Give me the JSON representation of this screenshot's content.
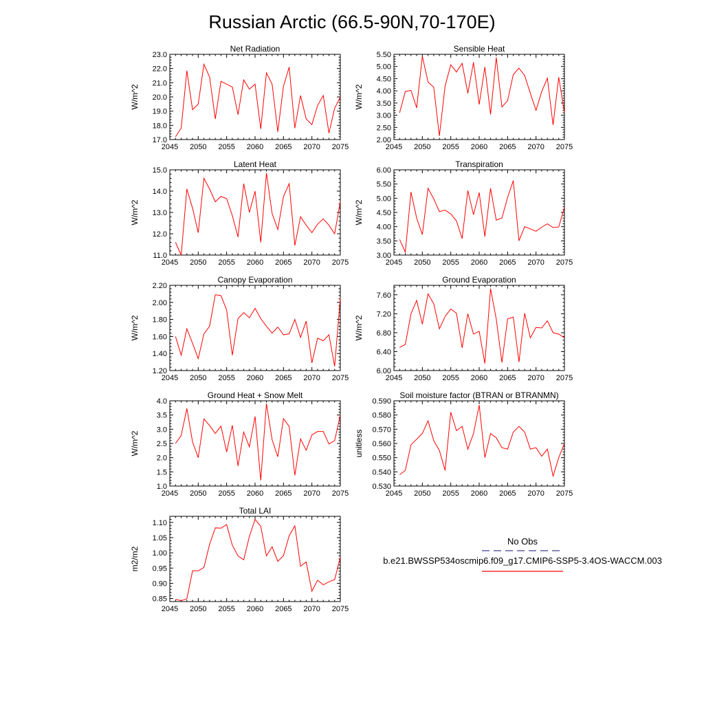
{
  "title": "Russian Arctic (66.5-90N,70-170E)",
  "legend": {
    "obs_label": "No Obs",
    "obs_color": "#3d3d8f",
    "model_label": "b.e21.BWSSP534oscmip6.f09_g17.CMIP6-SSP5-3.4OS-WACCM.003",
    "model_color": "#ff0000"
  },
  "chart_data": [
    {
      "type": "line",
      "title": "Net Radiation",
      "ylabel": "W/m^2",
      "xlim": [
        2045,
        2075
      ],
      "ylim": [
        17.0,
        23.0
      ],
      "xticks": [
        2045,
        2050,
        2055,
        2060,
        2065,
        2070,
        2075
      ],
      "yticks": [
        "17.0",
        "18.0",
        "19.0",
        "20.0",
        "21.0",
        "22.0",
        "23.0"
      ],
      "x": [
        2046,
        2047,
        2048,
        2049,
        2050,
        2051,
        2052,
        2053,
        2054,
        2055,
        2056,
        2057,
        2058,
        2059,
        2060,
        2061,
        2062,
        2063,
        2064,
        2065,
        2066,
        2067,
        2068,
        2069,
        2070,
        2071,
        2072,
        2073,
        2074,
        2075
      ],
      "series": [
        {
          "color": "#ff0000",
          "values": [
            17.2,
            17.8,
            21.85,
            19.1,
            19.5,
            22.3,
            21.4,
            18.45,
            21.1,
            20.9,
            20.7,
            18.75,
            21.2,
            20.55,
            20.9,
            17.75,
            21.7,
            20.9,
            17.55,
            20.75,
            22.1,
            17.8,
            20.1,
            18.45,
            18.05,
            19.4,
            20.1,
            17.45,
            19.2,
            20.0
          ]
        }
      ]
    },
    {
      "type": "line",
      "title": "Sensible Heat",
      "ylabel": "W/m^2",
      "xlim": [
        2045,
        2075
      ],
      "ylim": [
        2.0,
        5.5
      ],
      "xticks": [
        2045,
        2050,
        2055,
        2060,
        2065,
        2070,
        2075
      ],
      "yticks": [
        "2.00",
        "2.50",
        "3.00",
        "3.50",
        "4.00",
        "4.50",
        "5.00",
        "5.50"
      ],
      "x": [
        2046,
        2047,
        2048,
        2049,
        2050,
        2051,
        2052,
        2053,
        2054,
        2055,
        2056,
        2057,
        2058,
        2059,
        2060,
        2061,
        2062,
        2063,
        2064,
        2065,
        2066,
        2067,
        2068,
        2069,
        2070,
        2071,
        2072,
        2073,
        2074,
        2075
      ],
      "series": [
        {
          "color": "#ff0000",
          "values": [
            3.1,
            3.97,
            4.02,
            3.3,
            5.42,
            4.36,
            4.15,
            2.15,
            4.2,
            5.07,
            4.77,
            5.13,
            3.9,
            5.17,
            3.44,
            4.98,
            3.03,
            5.37,
            3.34,
            3.6,
            4.67,
            4.93,
            4.63,
            3.9,
            3.2,
            3.97,
            4.52,
            2.6,
            4.56,
            3.1
          ]
        }
      ]
    },
    {
      "type": "line",
      "title": "Latent Heat",
      "ylabel": "W/m^2",
      "xlim": [
        2045,
        2075
      ],
      "ylim": [
        11.0,
        15.0
      ],
      "xticks": [
        2045,
        2050,
        2055,
        2060,
        2065,
        2070,
        2075
      ],
      "yticks": [
        "11.0",
        "12.0",
        "13.0",
        "14.0",
        "15.0"
      ],
      "x": [
        2046,
        2047,
        2048,
        2049,
        2050,
        2051,
        2052,
        2053,
        2054,
        2055,
        2056,
        2057,
        2058,
        2059,
        2060,
        2061,
        2062,
        2063,
        2064,
        2065,
        2066,
        2067,
        2068,
        2069,
        2070,
        2071,
        2072,
        2073,
        2074,
        2075
      ],
      "series": [
        {
          "color": "#ff0000",
          "values": [
            11.6,
            11.0,
            14.1,
            13.2,
            12.05,
            14.6,
            14.1,
            13.5,
            13.75,
            13.65,
            12.85,
            11.85,
            14.35,
            13.0,
            14.0,
            11.6,
            14.85,
            12.95,
            12.2,
            13.75,
            14.35,
            11.45,
            12.8,
            12.4,
            12.05,
            12.45,
            12.7,
            12.4,
            12.0,
            13.5
          ]
        }
      ]
    },
    {
      "type": "line",
      "title": "Transpiration",
      "ylabel": "W/m^2",
      "xlim": [
        2045,
        2075
      ],
      "ylim": [
        3.0,
        6.0
      ],
      "xticks": [
        2045,
        2050,
        2055,
        2060,
        2065,
        2070,
        2075
      ],
      "yticks": [
        "3.00",
        "3.50",
        "4.00",
        "4.50",
        "5.00",
        "5.50",
        "6.00"
      ],
      "x": [
        2046,
        2047,
        2048,
        2049,
        2050,
        2051,
        2052,
        2053,
        2054,
        2055,
        2056,
        2057,
        2058,
        2059,
        2060,
        2061,
        2062,
        2063,
        2064,
        2065,
        2066,
        2067,
        2068,
        2069,
        2070,
        2071,
        2072,
        2073,
        2074,
        2075
      ],
      "series": [
        {
          "color": "#ff0000",
          "values": [
            3.55,
            3.1,
            5.22,
            4.3,
            3.72,
            5.35,
            4.98,
            4.53,
            4.58,
            4.45,
            4.2,
            3.58,
            5.27,
            4.42,
            5.2,
            3.65,
            5.35,
            4.23,
            4.3,
            5.03,
            5.62,
            3.5,
            4.0,
            3.92,
            3.84,
            3.98,
            4.1,
            3.97,
            3.99,
            4.68
          ]
        }
      ]
    },
    {
      "type": "line",
      "title": "Canopy Evaporation",
      "ylabel": "W/m^2",
      "xlim": [
        2045,
        2075
      ],
      "ylim": [
        1.2,
        2.2
      ],
      "xticks": [
        2045,
        2050,
        2055,
        2060,
        2065,
        2070,
        2075
      ],
      "yticks": [
        "1.20",
        "1.40",
        "1.60",
        "1.80",
        "2.00",
        "2.20"
      ],
      "x": [
        2046,
        2047,
        2048,
        2049,
        2050,
        2051,
        2052,
        2053,
        2054,
        2055,
        2056,
        2057,
        2058,
        2059,
        2060,
        2061,
        2062,
        2063,
        2064,
        2065,
        2066,
        2067,
        2068,
        2069,
        2070,
        2071,
        2072,
        2073,
        2074,
        2075
      ],
      "series": [
        {
          "color": "#ff0000",
          "values": [
            1.6,
            1.38,
            1.69,
            1.52,
            1.34,
            1.63,
            1.72,
            2.09,
            2.08,
            1.91,
            1.38,
            1.81,
            1.88,
            1.82,
            1.93,
            1.81,
            1.72,
            1.64,
            1.71,
            1.62,
            1.63,
            1.8,
            1.59,
            1.78,
            1.29,
            1.58,
            1.55,
            1.62,
            1.25,
            2.05
          ]
        }
      ]
    },
    {
      "type": "line",
      "title": "Ground Evaporation",
      "ylabel": "W/m^2",
      "xlim": [
        2045,
        2075
      ],
      "ylim": [
        6.0,
        7.8
      ],
      "xticks": [
        2045,
        2050,
        2055,
        2060,
        2065,
        2070,
        2075
      ],
      "yticks": [
        "6.00",
        "6.40",
        "6.80",
        "7.20",
        "7.60"
      ],
      "x": [
        2046,
        2047,
        2048,
        2049,
        2050,
        2051,
        2052,
        2053,
        2054,
        2055,
        2056,
        2057,
        2058,
        2059,
        2060,
        2061,
        2062,
        2063,
        2064,
        2065,
        2066,
        2067,
        2068,
        2069,
        2070,
        2071,
        2072,
        2073,
        2074,
        2075
      ],
      "series": [
        {
          "color": "#ff0000",
          "values": [
            6.49,
            6.55,
            7.2,
            7.48,
            6.98,
            7.62,
            7.41,
            6.88,
            7.14,
            7.3,
            7.21,
            6.48,
            7.2,
            6.77,
            6.83,
            6.15,
            7.73,
            7.09,
            6.17,
            7.09,
            7.13,
            6.18,
            7.21,
            6.69,
            6.91,
            6.9,
            7.05,
            6.8,
            6.77,
            6.69
          ]
        }
      ]
    },
    {
      "type": "line",
      "title": "Ground Heat + Snow Melt",
      "ylabel": "W/m^2",
      "xlim": [
        2045,
        2075
      ],
      "ylim": [
        1.0,
        4.0
      ],
      "xticks": [
        2045,
        2050,
        2055,
        2060,
        2065,
        2070,
        2075
      ],
      "yticks": [
        "1.0",
        "1.5",
        "2.0",
        "2.5",
        "3.0",
        "3.5",
        "4.0"
      ],
      "x": [
        2046,
        2047,
        2048,
        2049,
        2050,
        2051,
        2052,
        2053,
        2054,
        2055,
        2056,
        2057,
        2058,
        2059,
        2060,
        2061,
        2062,
        2063,
        2064,
        2065,
        2066,
        2067,
        2068,
        2069,
        2070,
        2071,
        2072,
        2073,
        2074,
        2075
      ],
      "series": [
        {
          "color": "#ff0000",
          "values": [
            2.5,
            2.78,
            3.73,
            2.55,
            2.0,
            3.36,
            3.13,
            2.85,
            3.11,
            2.2,
            3.14,
            1.71,
            2.9,
            2.38,
            3.45,
            1.2,
            3.9,
            2.63,
            2.03,
            3.37,
            3.1,
            1.38,
            2.66,
            2.26,
            2.8,
            2.92,
            2.92,
            2.48,
            2.6,
            3.5
          ]
        }
      ]
    },
    {
      "type": "line",
      "title": "Soil moisture factor (BTRAN or BTRANMN)",
      "ylabel": "unitless",
      "xlim": [
        2045,
        2075
      ],
      "ylim": [
        0.53,
        0.59
      ],
      "xticks": [
        2045,
        2050,
        2055,
        2060,
        2065,
        2070,
        2075
      ],
      "yticks": [
        "0.530",
        "0.540",
        "0.550",
        "0.560",
        "0.570",
        "0.580",
        "0.590"
      ],
      "x": [
        2046,
        2047,
        2048,
        2049,
        2050,
        2051,
        2052,
        2053,
        2054,
        2055,
        2056,
        2057,
        2058,
        2059,
        2060,
        2061,
        2062,
        2063,
        2064,
        2065,
        2066,
        2067,
        2068,
        2069,
        2070,
        2071,
        2072,
        2073,
        2074,
        2075
      ],
      "series": [
        {
          "color": "#ff0000",
          "values": [
            0.538,
            0.541,
            0.559,
            0.563,
            0.567,
            0.576,
            0.562,
            0.555,
            0.541,
            0.582,
            0.569,
            0.572,
            0.556,
            0.567,
            0.587,
            0.55,
            0.567,
            0.564,
            0.557,
            0.556,
            0.568,
            0.572,
            0.568,
            0.556,
            0.557,
            0.551,
            0.556,
            0.537,
            0.55,
            0.56
          ]
        }
      ]
    },
    {
      "type": "line",
      "title": "Total LAI",
      "ylabel": "m2/m2",
      "xlim": [
        2045,
        2075
      ],
      "ylim": [
        0.84,
        1.12
      ],
      "xticks": [
        2045,
        2050,
        2055,
        2060,
        2065,
        2070,
        2075
      ],
      "yticks": [
        "0.85",
        "0.90",
        "0.95",
        "1.00",
        "1.05",
        "1.10"
      ],
      "x": [
        2046,
        2047,
        2048,
        2049,
        2050,
        2051,
        2052,
        2053,
        2054,
        2055,
        2056,
        2057,
        2058,
        2059,
        2060,
        2061,
        2062,
        2063,
        2064,
        2065,
        2066,
        2067,
        2068,
        2069,
        2070,
        2071,
        2072,
        2073,
        2074,
        2075
      ],
      "series": [
        {
          "color": "#ff0000",
          "values": [
            0.847,
            0.843,
            0.849,
            0.941,
            0.941,
            0.952,
            1.028,
            1.082,
            1.081,
            1.093,
            1.025,
            0.99,
            0.977,
            1.054,
            1.11,
            1.087,
            0.99,
            1.02,
            0.972,
            0.991,
            1.056,
            1.089,
            0.956,
            0.97,
            0.874,
            0.91,
            0.895,
            0.905,
            0.912,
            0.985
          ]
        }
      ]
    }
  ]
}
